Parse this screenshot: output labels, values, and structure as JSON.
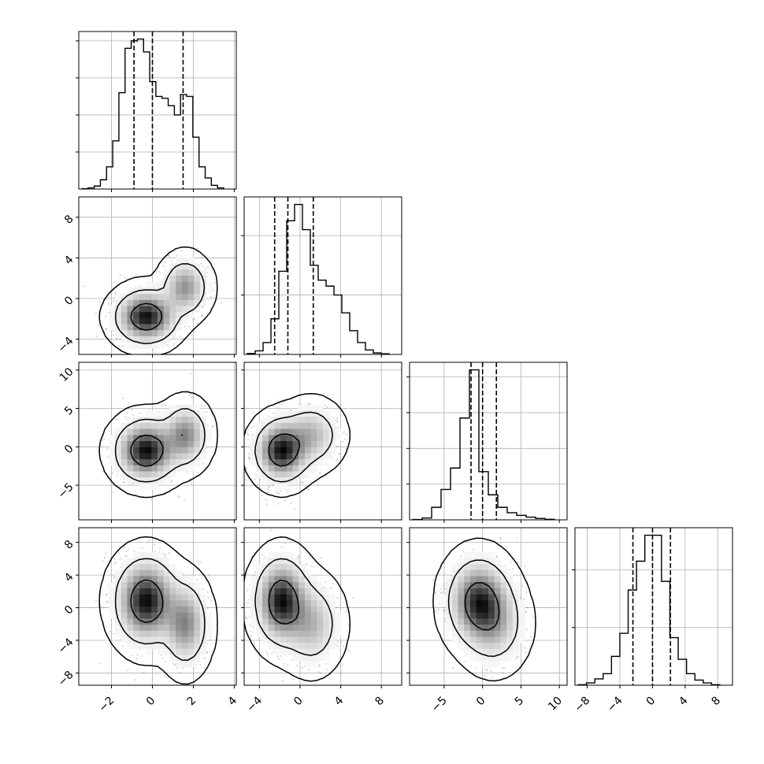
{
  "chart_data": {
    "type": "corner",
    "variables": [
      {
        "range": [
          -3.6,
          4.1
        ],
        "ticks": [
          -2,
          0,
          2,
          4
        ],
        "tick_labels": [
          "−2",
          "0",
          "2",
          "4"
        ],
        "quantiles": [
          -0.9,
          0.0,
          1.5
        ]
      },
      {
        "range": [
          -5.5,
          10.0
        ],
        "ticks": [
          -4,
          0,
          4,
          8
        ],
        "tick_labels": [
          "−4",
          "0",
          "4",
          "8"
        ],
        "quantiles": [
          -2.5,
          -1.2,
          1.3
        ]
      },
      {
        "range": [
          -9.5,
          11.0
        ],
        "ticks": [
          -5,
          0,
          5,
          10
        ],
        "tick_labels": [
          "−5",
          "0",
          "5",
          "10"
        ],
        "quantiles": [
          -1.5,
          0.0,
          1.8
        ]
      },
      {
        "range": [
          -9.5,
          9.8
        ],
        "ticks": [
          -8,
          -4,
          0,
          4,
          8
        ],
        "tick_labels": [
          "−8",
          "−4",
          "0",
          "4",
          "8"
        ],
        "quantiles": [
          -2.4,
          0.0,
          2.2
        ]
      }
    ],
    "histograms": [
      {
        "counts": [
          1,
          3,
          8,
          25,
          60,
          130,
          260,
          380,
          400,
          405,
          370,
          290,
          250,
          245,
          225,
          200,
          255,
          250,
          140,
          60,
          30,
          10,
          3
        ]
      },
      {
        "counts": [
          3,
          12,
          40,
          120,
          280,
          450,
          505,
          420,
          300,
          250,
          230,
          200,
          140,
          80,
          40,
          15,
          5,
          2
        ]
      },
      {
        "counts": [
          2,
          10,
          70,
          170,
          290,
          570,
          840,
          270,
          140,
          70,
          40,
          25,
          15,
          8,
          3
        ]
      },
      {
        "counts": [
          2,
          8,
          22,
          40,
          100,
          180,
          330,
          430,
          520,
          520,
          360,
          165,
          90,
          40,
          18,
          8,
          2
        ]
      }
    ],
    "components": [
      {
        "weight": 0.7,
        "mean": [
          -0.3,
          -1.8,
          -0.5,
          0.8
        ],
        "std": [
          0.75,
          1.3,
          2.0,
          2.6
        ]
      },
      {
        "weight": 0.3,
        "mean": [
          1.6,
          1.1,
          1.5,
          -2.0
        ],
        "std": [
          0.55,
          1.4,
          2.0,
          2.6
        ]
      }
    ],
    "density_levels": [
      0.393,
      0.865,
      0.989
    ],
    "grid": true,
    "title": "",
    "xlabel": "",
    "ylabel": ""
  },
  "colors": {
    "line": "#000000",
    "grid": "#b0b0b0",
    "frame": "#000000",
    "points": "#6e6e6e"
  }
}
